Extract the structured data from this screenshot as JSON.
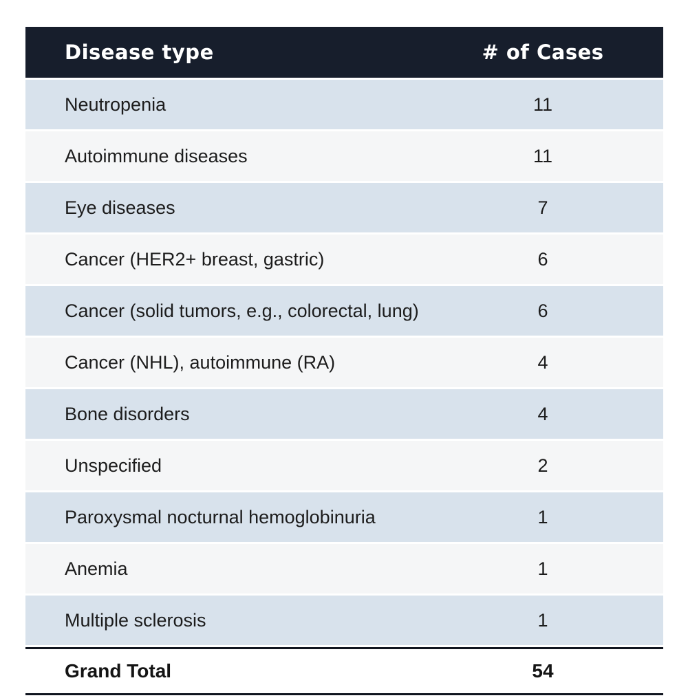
{
  "colors": {
    "header_bg": "#171e2c",
    "header_text": "#ffffff",
    "row_blue": "#d8e2ec",
    "row_white": "#f5f6f7",
    "body_text": "#1c1c1c",
    "total_rule": "#10151f",
    "page_bg": "#ffffff"
  },
  "chart_data": {
    "type": "table",
    "columns": [
      "Disease type",
      "# of Cases"
    ],
    "rows": [
      [
        "Neutropenia",
        11
      ],
      [
        "Autoimmune diseases",
        11
      ],
      [
        "Eye diseases",
        7
      ],
      [
        "Cancer (HER2+ breast, gastric)",
        6
      ],
      [
        "Cancer (solid tumors, e.g., colorectal, lung)",
        6
      ],
      [
        "Cancer (NHL), autoimmune (RA)",
        4
      ],
      [
        "Bone disorders",
        4
      ],
      [
        "Unspecified",
        2
      ],
      [
        "Paroxysmal nocturnal hemoglobinuria",
        1
      ],
      [
        "Anemia",
        1
      ],
      [
        "Multiple sclerosis",
        1
      ]
    ],
    "footer": [
      "Grand Total",
      54
    ],
    "layout": {
      "zebra_striping": true,
      "cases_column_align": "center",
      "footer_rules": "top-and-bottom"
    }
  }
}
